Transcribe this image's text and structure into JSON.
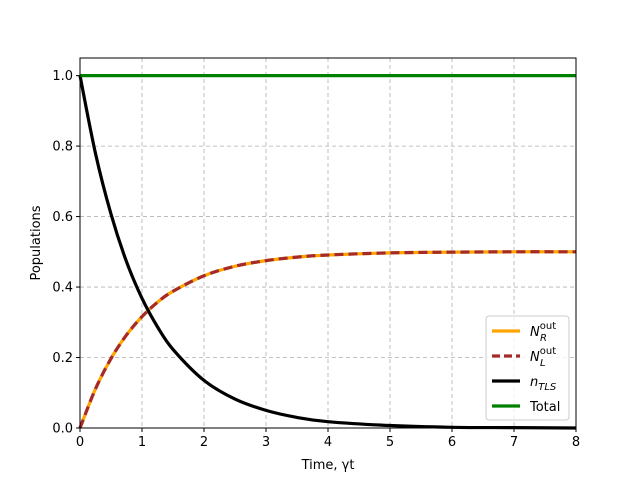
{
  "chart_data": {
    "type": "line",
    "xlabel": "Time, γt",
    "ylabel": "Populations",
    "xlim": [
      0,
      8
    ],
    "ylim": [
      0,
      1.05
    ],
    "xticks": [
      "0",
      "1",
      "2",
      "3",
      "4",
      "5",
      "6",
      "7",
      "8"
    ],
    "yticks": [
      "0.0",
      "0.2",
      "0.4",
      "0.6",
      "0.8",
      "1.0"
    ],
    "grid": true,
    "legend_position": "lower-right",
    "series": [
      {
        "name": "N_R^out",
        "legend": {
          "base": "N",
          "sub": "R",
          "sup": "out"
        },
        "color": "#ffa500",
        "style": "solid",
        "x": [
          0,
          0.25,
          0.5,
          0.75,
          1,
          1.25,
          1.5,
          2,
          2.5,
          3,
          3.5,
          4,
          5,
          6,
          7,
          8
        ],
        "values": [
          0,
          0.111,
          0.197,
          0.264,
          0.316,
          0.357,
          0.388,
          0.432,
          0.459,
          0.475,
          0.485,
          0.491,
          0.497,
          0.499,
          0.5,
          0.5
        ]
      },
      {
        "name": "N_L^out",
        "legend": {
          "base": "N",
          "sub": "L",
          "sup": "out"
        },
        "color": "#a52a2a",
        "style": "dashed",
        "x": [
          0,
          0.25,
          0.5,
          0.75,
          1,
          1.25,
          1.5,
          2,
          2.5,
          3,
          3.5,
          4,
          5,
          6,
          7,
          8
        ],
        "values": [
          0,
          0.111,
          0.197,
          0.264,
          0.316,
          0.357,
          0.388,
          0.432,
          0.459,
          0.475,
          0.485,
          0.491,
          0.497,
          0.499,
          0.5,
          0.5
        ]
      },
      {
        "name": "n_TLS",
        "legend": {
          "base": "n",
          "sub": "TLS",
          "sup": ""
        },
        "color": "#000000",
        "style": "solid",
        "x": [
          0,
          0.25,
          0.5,
          0.75,
          1,
          1.25,
          1.5,
          2,
          2.5,
          3,
          3.5,
          4,
          5,
          6,
          7,
          8
        ],
        "values": [
          1,
          0.779,
          0.607,
          0.472,
          0.368,
          0.287,
          0.223,
          0.135,
          0.082,
          0.05,
          0.03,
          0.018,
          0.007,
          0.002,
          0.001,
          0
        ]
      },
      {
        "name": "Total",
        "legend": {
          "base": "Total",
          "sub": "",
          "sup": ""
        },
        "color": "#008000",
        "style": "solid",
        "x": [
          0,
          8
        ],
        "values": [
          1,
          1
        ]
      }
    ]
  }
}
